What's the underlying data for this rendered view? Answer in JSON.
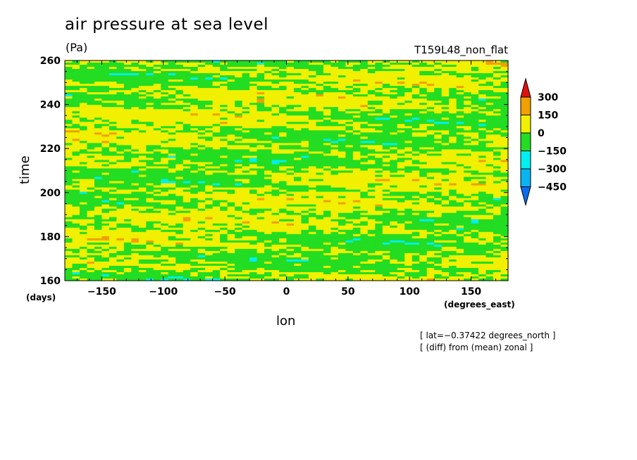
{
  "chart_data": {
    "type": "heatmap",
    "title": "air pressure at sea level",
    "units": "(Pa)",
    "run_label": "T159L48_non_flat",
    "xlabel": "lon",
    "ylabel": "time",
    "x_unit": "(degrees_east)",
    "y_unit": "(days)",
    "xlim": [
      -180,
      180
    ],
    "ylim": [
      160,
      260
    ],
    "x_ticks": [
      -150,
      -100,
      -50,
      0,
      50,
      100,
      150
    ],
    "y_ticks": [
      160,
      180,
      200,
      220,
      240,
      260
    ],
    "colorbar": {
      "levels": [
        -450,
        -300,
        -150,
        0,
        150,
        300
      ],
      "level_labels": [
        "300",
        "150",
        "0",
        "−150",
        "−300",
        "−450"
      ],
      "colors": [
        "#0a6cf0",
        "#0ab4f0",
        "#00f0f0",
        "#22dd22",
        "#f0f000",
        "#f0a000",
        "#e01010"
      ],
      "extend": "both"
    },
    "annotations": [
      "[ lat=−0.37422 degrees_north ]",
      "[ (diff) from (mean) zonal ]"
    ]
  }
}
